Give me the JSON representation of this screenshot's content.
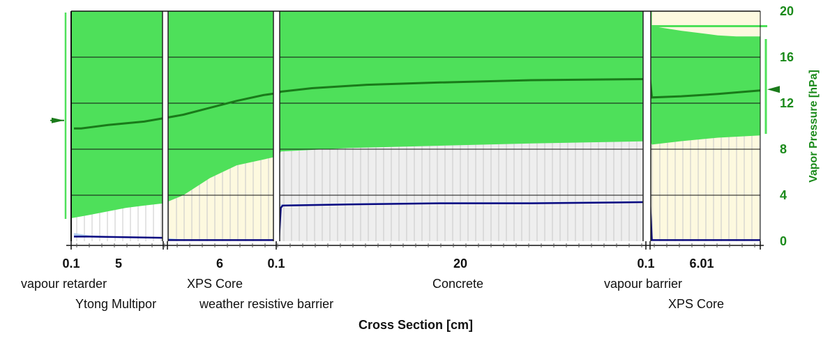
{
  "chart_data": {
    "type": "area",
    "xlabel": "Cross Section [cm]",
    "ylabel": "Vapor Pressure [hPa]",
    "ylim": [
      0,
      20
    ],
    "yticks": [
      "0",
      "4",
      "8",
      "12",
      "16",
      "20"
    ],
    "grid": true,
    "layers": [
      {
        "name": "vapour retarder",
        "thickness": "0.1",
        "t": 0.1
      },
      {
        "name": "Ytong Multipor",
        "thickness": "5",
        "t": 5
      },
      {
        "name": "XPS Core",
        "thickness": "6",
        "t": 6
      },
      {
        "name": "weather resistive barrier",
        "thickness": "0.1",
        "t": 0.1
      },
      {
        "name": "Concrete",
        "thickness": "20",
        "t": 20
      },
      {
        "name": "vapour barrier",
        "thickness": "0.1",
        "t": 0.1
      },
      {
        "name": "XPS Core",
        "thickness": "6.01",
        "t": 6.01
      }
    ],
    "series": [
      {
        "key": "pv_upper",
        "x": [
          0.1,
          1,
          2,
          3,
          4,
          5.1,
          6,
          7.5,
          9,
          11.2,
          11.3,
          15,
          20,
          25,
          31.3,
          31.4,
          33,
          35,
          37.41
        ],
        "values": [
          2,
          2.3,
          2.6,
          2.9,
          3.1,
          3.3,
          4,
          5.5,
          6.6,
          7.4,
          7.8,
          8.1,
          8.3,
          8.5,
          8.7,
          8.4,
          8.7,
          9.0,
          9.2
        ]
      },
      {
        "key": "pv_lower",
        "x": [
          0.1,
          1,
          2,
          3,
          4,
          5.1,
          6,
          7.5,
          9,
          11.2,
          11.3,
          15,
          20,
          25,
          31.3,
          31.4,
          33,
          35,
          37.41
        ],
        "values": [
          0.7,
          0.5,
          0.45,
          0.4,
          0.35,
          0.3,
          0.15,
          0.1,
          0.1,
          0.1,
          3.2,
          3.3,
          3.4,
          3.4,
          3.5,
          0.1,
          0.05,
          0.05,
          0.05
        ]
      },
      {
        "key": "pv_mean",
        "x": [
          0.1,
          0.5,
          2,
          4,
          5.1,
          6,
          7.5,
          9,
          10.5,
          11.2,
          11.3,
          13,
          16,
          20,
          25,
          31.3,
          31.4,
          33,
          35,
          37.41
        ],
        "values": [
          9.8,
          9.8,
          10.1,
          10.4,
          10.7,
          11,
          11.6,
          12.2,
          12.7,
          12.9,
          13,
          13.3,
          13.6,
          13.8,
          14,
          14.1,
          12.5,
          12.6,
          12.8,
          13.1
        ]
      },
      {
        "key": "pv_liquid",
        "x": [
          0.1,
          1,
          3,
          5.1,
          5.2,
          8,
          11.2,
          11.3,
          11.4,
          15,
          20,
          25,
          31.3,
          31.4,
          37.41
        ],
        "values": [
          0.4,
          0.4,
          0.35,
          0.3,
          0.1,
          0.1,
          0.1,
          2.9,
          3.1,
          3.2,
          3.3,
          3.3,
          3.4,
          0.1,
          0.1
        ]
      },
      {
        "key": "pv_saturation",
        "x": [
          31.4,
          33,
          35,
          36,
          37.41
        ],
        "values": [
          18.7,
          18.3,
          17.9,
          17.8,
          17.8
        ]
      }
    ],
    "boundary_left": 10.5,
    "boundary_right": 13.2,
    "colors": {
      "green": "#4ee05a",
      "dark_green": "#1a7a1a",
      "axis_green": "#1a8a1a",
      "beige": "#fdf9df",
      "grey": "#eeeeee",
      "white": "#ffffff",
      "blue": "#0a0a80",
      "light_blue": "#a8c8ee"
    }
  }
}
